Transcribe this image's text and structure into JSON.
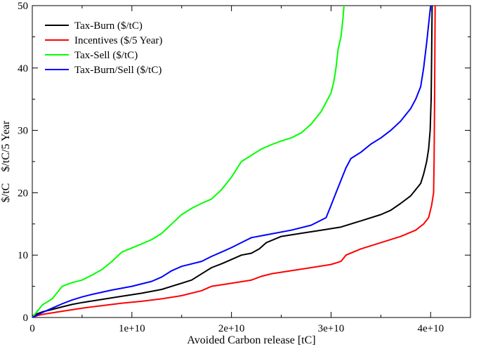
{
  "chart_data": {
    "type": "line",
    "title": "",
    "xlabel": "Avoided Carbon release [tC]",
    "ylabel": "$/tC    $/tC/5 Year",
    "xlim": [
      0,
      44000000000
    ],
    "ylim": [
      0,
      50
    ],
    "grid": false,
    "legend_position": "top-left",
    "x_ticks": [
      {
        "value": 0,
        "label": "0"
      },
      {
        "value": 10000000000,
        "label": "1e+10"
      },
      {
        "value": 20000000000,
        "label": "2e+10"
      },
      {
        "value": 30000000000,
        "label": "3e+10"
      },
      {
        "value": 40000000000,
        "label": "4e+10"
      }
    ],
    "y_ticks": [
      {
        "value": 0,
        "label": "0"
      },
      {
        "value": 10,
        "label": "10"
      },
      {
        "value": 20,
        "label": "20"
      },
      {
        "value": 30,
        "label": "30"
      },
      {
        "value": 40,
        "label": "40"
      },
      {
        "value": 50,
        "label": "50"
      }
    ],
    "series": [
      {
        "name": "Tax-Burn ($/tC)",
        "color": "#000000",
        "points": [
          [
            0,
            0
          ],
          [
            100000000.0,
            0.3
          ],
          [
            500000000.0,
            0.6
          ],
          [
            1000000000.0,
            0.9
          ],
          [
            2000000000.0,
            1.3
          ],
          [
            3000000000.0,
            1.7
          ],
          [
            4000000000.0,
            2.1
          ],
          [
            5000000000.0,
            2.4
          ],
          [
            7000000000.0,
            2.9
          ],
          [
            9000000000.0,
            3.4
          ],
          [
            11000000000.0,
            3.9
          ],
          [
            13000000000.0,
            4.5
          ],
          [
            14000000000.0,
            5.0
          ],
          [
            15000000000.0,
            5.5
          ],
          [
            16000000000.0,
            6.0
          ],
          [
            17000000000.0,
            7.0
          ],
          [
            18000000000.0,
            8.0
          ],
          [
            19000000000.0,
            8.6
          ],
          [
            20000000000.0,
            9.3
          ],
          [
            21000000000.0,
            10.0
          ],
          [
            22000000000.0,
            10.3
          ],
          [
            22800000000.0,
            11.0
          ],
          [
            23500000000.0,
            12.0
          ],
          [
            25000000000.0,
            13.0
          ],
          [
            27000000000.0,
            13.5
          ],
          [
            29000000000.0,
            14.0
          ],
          [
            31000000000.0,
            14.5
          ],
          [
            33000000000.0,
            15.5
          ],
          [
            35000000000.0,
            16.5
          ],
          [
            36000000000.0,
            17.2
          ],
          [
            37000000000.0,
            18.3
          ],
          [
            38000000000.0,
            19.5
          ],
          [
            38500000000.0,
            20.5
          ],
          [
            39000000000.0,
            21.5
          ],
          [
            39300000000.0,
            23.0
          ],
          [
            39600000000.0,
            25.0
          ],
          [
            39800000000.0,
            27.0
          ],
          [
            39950000000.0,
            30.0
          ],
          [
            40050000000.0,
            35.0
          ],
          [
            40100000000.0,
            42.0
          ],
          [
            40150000000.0,
            50.0
          ]
        ]
      },
      {
        "name": "Incentives ($/5 Year)",
        "color": "#ff0000",
        "points": [
          [
            0,
            0
          ],
          [
            500000000.0,
            0.3
          ],
          [
            1000000000.0,
            0.5
          ],
          [
            3000000000.0,
            1.0
          ],
          [
            5000000000.0,
            1.5
          ],
          [
            7000000000.0,
            1.9
          ],
          [
            9000000000.0,
            2.3
          ],
          [
            11000000000.0,
            2.6
          ],
          [
            13000000000.0,
            3.0
          ],
          [
            15000000000.0,
            3.5
          ],
          [
            17000000000.0,
            4.3
          ],
          [
            18000000000.0,
            5.0
          ],
          [
            20000000000.0,
            5.5
          ],
          [
            22000000000.0,
            6.0
          ],
          [
            23000000000.0,
            6.6
          ],
          [
            24000000000.0,
            7.0
          ],
          [
            26000000000.0,
            7.5
          ],
          [
            28000000000.0,
            8.0
          ],
          [
            30000000000.0,
            8.5
          ],
          [
            31000000000.0,
            9.0
          ],
          [
            31500000000.0,
            10.0
          ],
          [
            33000000000.0,
            11.0
          ],
          [
            35000000000.0,
            12.0
          ],
          [
            37000000000.0,
            13.0
          ],
          [
            38500000000.0,
            14.0
          ],
          [
            39300000000.0,
            15.0
          ],
          [
            39800000000.0,
            16.0
          ],
          [
            40100000000.0,
            18.0
          ],
          [
            40300000000.0,
            20.0
          ],
          [
            40350000000.0,
            25.0
          ],
          [
            40400000000.0,
            35.0
          ],
          [
            40450000000.0,
            50.0
          ]
        ]
      },
      {
        "name": "Tax-Sell ($/tC)",
        "color": "#00ff00",
        "points": [
          [
            0,
            0
          ],
          [
            500000000.0,
            1.0
          ],
          [
            1000000000.0,
            2.0
          ],
          [
            2000000000.0,
            3.0
          ],
          [
            2500000000.0,
            4.0
          ],
          [
            3000000000.0,
            5.0
          ],
          [
            4000000000.0,
            5.6
          ],
          [
            5000000000.0,
            6.0
          ],
          [
            6000000000.0,
            6.8
          ],
          [
            7000000000.0,
            7.7
          ],
          [
            8000000000.0,
            9.0
          ],
          [
            9000000000.0,
            10.5
          ],
          [
            11000000000.0,
            11.8
          ],
          [
            12000000000.0,
            12.5
          ],
          [
            13000000000.0,
            13.5
          ],
          [
            14000000000.0,
            15.0
          ],
          [
            15000000000.0,
            16.5
          ],
          [
            16000000000.0,
            17.5
          ],
          [
            17000000000.0,
            18.3
          ],
          [
            18000000000.0,
            19.0
          ],
          [
            19000000000.0,
            20.5
          ],
          [
            20000000000.0,
            22.5
          ],
          [
            21000000000.0,
            25.0
          ],
          [
            22000000000.0,
            26.0
          ],
          [
            23000000000.0,
            27.0
          ],
          [
            24000000000.0,
            27.7
          ],
          [
            25000000000.0,
            28.3
          ],
          [
            26000000000.0,
            28.8
          ],
          [
            27000000000.0,
            29.6
          ],
          [
            28000000000.0,
            31.0
          ],
          [
            28500000000.0,
            32.0
          ],
          [
            29000000000.0,
            33.0
          ],
          [
            29500000000.0,
            34.5
          ],
          [
            30000000000.0,
            36.0
          ],
          [
            30300000000.0,
            38.0
          ],
          [
            30500000000.0,
            40.0
          ],
          [
            30700000000.0,
            43.0
          ],
          [
            31000000000.0,
            45.0
          ],
          [
            31200000000.0,
            48.0
          ],
          [
            31300000000.0,
            50.0
          ]
        ]
      },
      {
        "name": "Tax-Burn/Sell ($/tC)",
        "color": "#0000ff",
        "points": [
          [
            0,
            0
          ],
          [
            500000000.0,
            0.4
          ],
          [
            1000000000.0,
            0.8
          ],
          [
            2000000000.0,
            1.5
          ],
          [
            3000000000.0,
            2.2
          ],
          [
            4000000000.0,
            2.8
          ],
          [
            5000000000.0,
            3.3
          ],
          [
            6000000000.0,
            3.7
          ],
          [
            8000000000.0,
            4.4
          ],
          [
            10000000000.0,
            5.0
          ],
          [
            12000000000.0,
            5.8
          ],
          [
            13000000000.0,
            6.5
          ],
          [
            14000000000.0,
            7.5
          ],
          [
            15000000000.0,
            8.2
          ],
          [
            17000000000.0,
            9.0
          ],
          [
            18000000000.0,
            9.8
          ],
          [
            19000000000.0,
            10.5
          ],
          [
            20000000000.0,
            11.2
          ],
          [
            21000000000.0,
            12.0
          ],
          [
            22000000000.0,
            12.8
          ],
          [
            24000000000.0,
            13.4
          ],
          [
            26000000000.0,
            14.0
          ],
          [
            28000000000.0,
            14.8
          ],
          [
            29500000000.0,
            16.0
          ],
          [
            30000000000.0,
            18.0
          ],
          [
            30500000000.0,
            20.0
          ],
          [
            31000000000.0,
            22.0
          ],
          [
            31500000000.0,
            24.0
          ],
          [
            32000000000.0,
            25.5
          ],
          [
            33000000000.0,
            26.5
          ],
          [
            34000000000.0,
            27.8
          ],
          [
            35000000000.0,
            28.8
          ],
          [
            36000000000.0,
            30.0
          ],
          [
            37000000000.0,
            31.5
          ],
          [
            38000000000.0,
            33.5
          ],
          [
            38500000000.0,
            35.0
          ],
          [
            39000000000.0,
            37.0
          ],
          [
            39300000000.0,
            40.0
          ],
          [
            39600000000.0,
            44.0
          ],
          [
            39800000000.0,
            47.0
          ],
          [
            40000000000.0,
            50.0
          ]
        ]
      }
    ]
  }
}
